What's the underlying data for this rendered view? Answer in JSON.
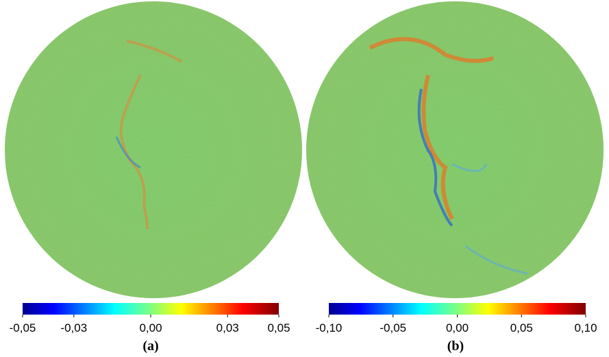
{
  "panels": [
    {
      "label": "(a)",
      "colorbar": {
        "range": [
          -0.05,
          0.05
        ],
        "ticks": [
          {
            "value": -0.05,
            "label": "-0,05"
          },
          {
            "value": -0.03,
            "label": "-0,03"
          },
          {
            "value": 0,
            "label": "0,00"
          },
          {
            "value": 0.03,
            "label": "0,03"
          },
          {
            "value": 0.05,
            "label": "0,05"
          }
        ]
      }
    },
    {
      "label": "(b)",
      "colorbar": {
        "range": [
          -0.1,
          0.1
        ],
        "ticks": [
          {
            "value": -0.1,
            "label": "-0,10"
          },
          {
            "value": -0.05,
            "label": "-0,05"
          },
          {
            "value": 0,
            "label": "0,00"
          },
          {
            "value": 0.05,
            "label": "0,05"
          },
          {
            "value": 0.1,
            "label": "0,10"
          }
        ]
      }
    }
  ]
}
